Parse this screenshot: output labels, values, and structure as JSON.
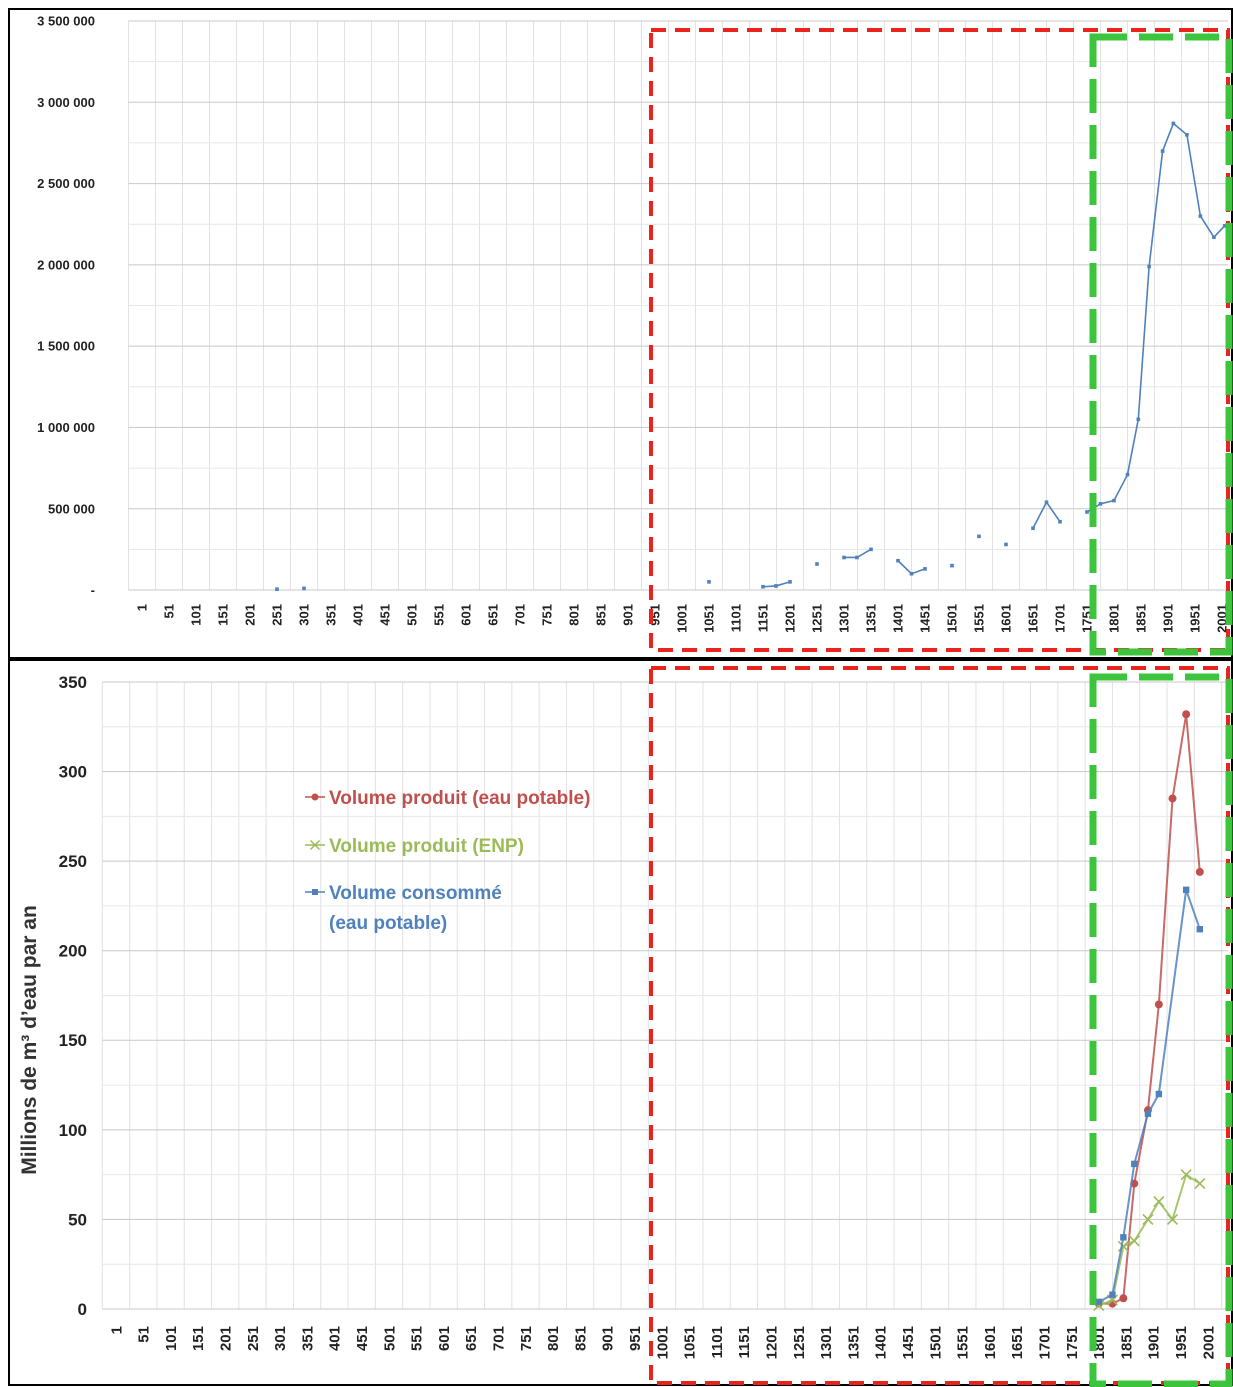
{
  "colors": {
    "highlight_red": "#e8241c",
    "highlight_green": "#3cc43c",
    "series_blue": "#4f81bd",
    "series_red": "#c0504d",
    "series_green": "#9bbb59"
  },
  "chart_data": [
    {
      "type": "line",
      "title": "",
      "xlabel": "",
      "ylabel": "",
      "ylim": [
        0,
        3500000
      ],
      "grid": true,
      "y_ticks": [
        "3 500 000",
        "3 000 000",
        "2 500 000",
        "2 000 000",
        "1 500 000",
        "1 000 000",
        "500 000",
        "-"
      ],
      "x_ticks": [
        "1",
        "51",
        "101",
        "151",
        "201",
        "251",
        "301",
        "351",
        "401",
        "451",
        "501",
        "551",
        "601",
        "651",
        "701",
        "751",
        "801",
        "851",
        "901",
        "951",
        "1001",
        "1051",
        "1101",
        "1151",
        "1201",
        "1251",
        "1301",
        "1351",
        "1401",
        "1451",
        "1501",
        "1551",
        "1601",
        "1651",
        "1701",
        "1751",
        "1801",
        "1851",
        "1901",
        "1951",
        "2001"
      ],
      "series": [
        {
          "color": "#4f81bd",
          "segments": [
            [
              [
                251,
                5000
              ]
            ],
            [
              [
                301,
                10000
              ]
            ],
            [
              [
                1051,
                50000
              ]
            ],
            [
              [
                1151,
                20000
              ],
              [
                1175,
                25000
              ],
              [
                1201,
                50000
              ]
            ],
            [
              [
                1251,
                160000
              ]
            ],
            [
              [
                1301,
                200000
              ],
              [
                1325,
                200000
              ],
              [
                1351,
                250000
              ]
            ],
            [
              [
                1401,
                180000
              ],
              [
                1426,
                100000
              ],
              [
                1451,
                130000
              ]
            ],
            [
              [
                1501,
                150000
              ]
            ],
            [
              [
                1551,
                330000
              ]
            ],
            [
              [
                1601,
                280000
              ]
            ],
            [
              [
                1651,
                380000
              ],
              [
                1676,
                540000
              ],
              [
                1701,
                420000
              ]
            ],
            [
              [
                1751,
                480000
              ],
              [
                1776,
                530000
              ],
              [
                1801,
                550000
              ],
              [
                1826,
                710000
              ],
              [
                1846,
                1050000
              ],
              [
                1866,
                1990000
              ],
              [
                1891,
                2700000
              ],
              [
                1911,
                2870000
              ],
              [
                1936,
                2800000
              ],
              [
                1961,
                2300000
              ],
              [
                1986,
                2170000
              ],
              [
                2006,
                2240000
              ]
            ]
          ]
        }
      ]
    },
    {
      "type": "line",
      "title": "",
      "xlabel": "",
      "ylabel": "Millions de m³ d’eau par an",
      "ylim": [
        0,
        350
      ],
      "grid": true,
      "legend_position": "top-center",
      "y_ticks": [
        "350",
        "300",
        "250",
        "200",
        "150",
        "100",
        "50",
        "0"
      ],
      "x_ticks": [
        "1",
        "51",
        "101",
        "151",
        "201",
        "251",
        "301",
        "351",
        "401",
        "451",
        "501",
        "551",
        "601",
        "651",
        "701",
        "751",
        "801",
        "851",
        "901",
        "951",
        "1001",
        "1051",
        "1101",
        "1151",
        "1201",
        "1251",
        "1301",
        "1351",
        "1401",
        "1451",
        "1501",
        "1551",
        "1601",
        "1651",
        "1701",
        "1751",
        "1801",
        "1851",
        "1901",
        "1951",
        "2001"
      ],
      "series": [
        {
          "name": "Volume produit (eau potable)",
          "color": "#c0504d",
          "marker": "circle",
          "points": [
            [
              1801,
              3
            ],
            [
              1826,
              3
            ],
            [
              1846,
              6
            ],
            [
              1866,
              70
            ],
            [
              1891,
              111
            ],
            [
              1911,
              170
            ],
            [
              1936,
              285
            ],
            [
              1961,
              332
            ],
            [
              1986,
              244
            ]
          ]
        },
        {
          "name": "Volume produit (ENP)",
          "color": "#9bbb59",
          "marker": "x",
          "points": [
            [
              1801,
              2
            ],
            [
              1826,
              5
            ],
            [
              1846,
              35
            ],
            [
              1866,
              38
            ],
            [
              1891,
              50
            ],
            [
              1911,
              60
            ],
            [
              1936,
              50
            ],
            [
              1961,
              75
            ],
            [
              1986,
              70
            ]
          ]
        },
        {
          "name": "Volume consommé",
          "name_line2": "(eau potable)",
          "color": "#4f81bd",
          "marker": "square",
          "points": [
            [
              1801,
              4
            ],
            [
              1826,
              8
            ],
            [
              1846,
              40
            ],
            [
              1866,
              81
            ],
            [
              1891,
              109
            ],
            [
              1911,
              120
            ],
            [
              1961,
              234
            ],
            [
              1986,
              212
            ]
          ]
        }
      ]
    }
  ]
}
